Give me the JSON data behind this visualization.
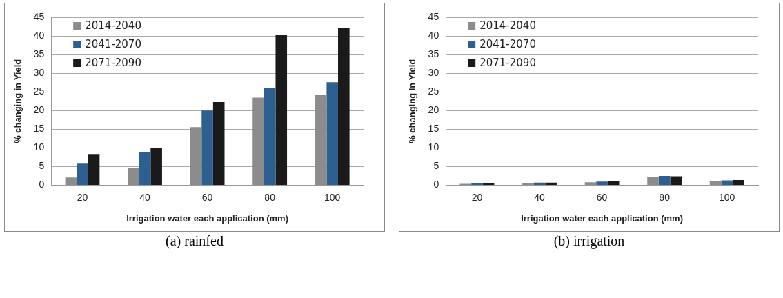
{
  "chart_data": [
    {
      "type": "bar",
      "xlabel": "Irrigation water each application (mm)",
      "ylabel": "% changing in Yield",
      "categories": [
        "20",
        "40",
        "60",
        "80",
        "100"
      ],
      "series": [
        {
          "name": "2014-2040",
          "color": "#8c8c8c",
          "values": [
            2.1,
            4.6,
            15.6,
            23.5,
            24.2
          ]
        },
        {
          "name": "2041-2070",
          "color": "#2e5f91",
          "values": [
            5.8,
            9,
            20,
            26,
            27.6
          ]
        },
        {
          "name": "2071-2090",
          "color": "#1a1a1a",
          "values": [
            8.4,
            10,
            22.3,
            40.2,
            42.2
          ]
        }
      ],
      "ylim": [
        0,
        45
      ],
      "yticks": [
        0,
        5,
        10,
        15,
        20,
        25,
        30,
        35,
        40,
        45
      ],
      "grid": "y",
      "legend": "top left",
      "annotations": [
        "(a) rainfed"
      ]
    },
    {
      "type": "bar",
      "xlabel": "Irrigation water each application (mm)",
      "ylabel": "% changing in Yield",
      "categories": [
        "20",
        "40",
        "60",
        "80",
        "100"
      ],
      "series": [
        {
          "name": "2014-2040",
          "color": "#8c8c8c",
          "values": [
            0.4,
            0.6,
            0.8,
            2.3,
            1.1
          ]
        },
        {
          "name": "2041-2070",
          "color": "#2e5f91",
          "values": [
            0.6,
            0.7,
            1,
            2.5,
            1.3
          ]
        },
        {
          "name": "2071-2090",
          "color": "#1a1a1a",
          "values": [
            0.5,
            0.7,
            1.1,
            2.4,
            1.4
          ]
        }
      ],
      "ylim": [
        0,
        45
      ],
      "yticks": [
        0,
        5,
        10,
        15,
        20,
        25,
        30,
        35,
        40,
        45
      ],
      "grid": "y",
      "legend": "top left",
      "annotations": [
        "(b) irrigation"
      ]
    }
  ]
}
